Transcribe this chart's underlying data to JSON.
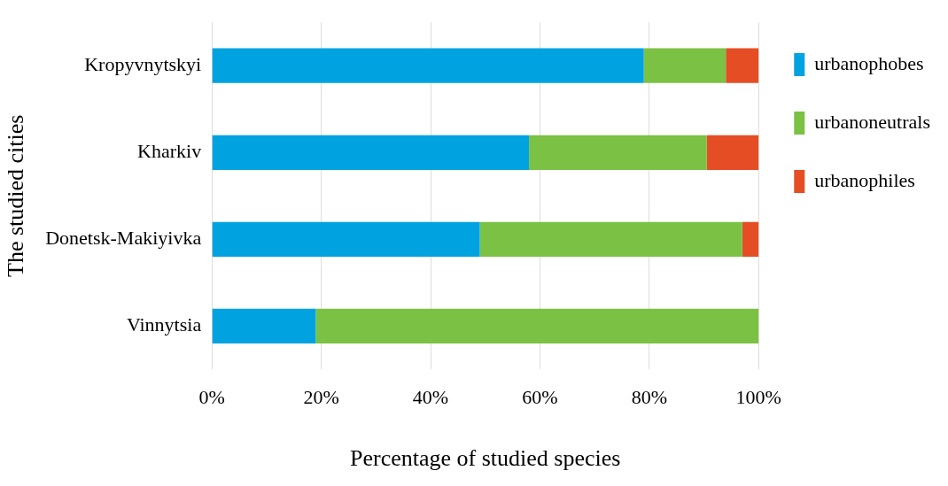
{
  "chart_data": {
    "type": "bar",
    "orientation": "horizontal",
    "stacked": true,
    "xlabel": "Percentage of studied species",
    "ylabel": "The studied cities",
    "categories": [
      "Kropyvnytskyi",
      "Kharkiv",
      "Donetsk-Makiyivka",
      "Vinnytsia"
    ],
    "series": [
      {
        "name": "urbanophobes",
        "color": "#00a2e0",
        "values": [
          79,
          58,
          49,
          19
        ]
      },
      {
        "name": "urbanoneutrals",
        "color": "#7bc143",
        "values": [
          15,
          32.5,
          48,
          81
        ]
      },
      {
        "name": "urbanophiles",
        "color": "#e54d24",
        "values": [
          6,
          9.5,
          3,
          0
        ]
      }
    ],
    "xlim": [
      0,
      100
    ],
    "xticks": [
      {
        "value": 0,
        "label": "0%"
      },
      {
        "value": 20,
        "label": "20%"
      },
      {
        "value": 40,
        "label": "40%"
      },
      {
        "value": 60,
        "label": "60%"
      },
      {
        "value": 80,
        "label": "80%"
      },
      {
        "value": 100,
        "label": "100%"
      }
    ],
    "grid": "x",
    "legend": "right"
  }
}
